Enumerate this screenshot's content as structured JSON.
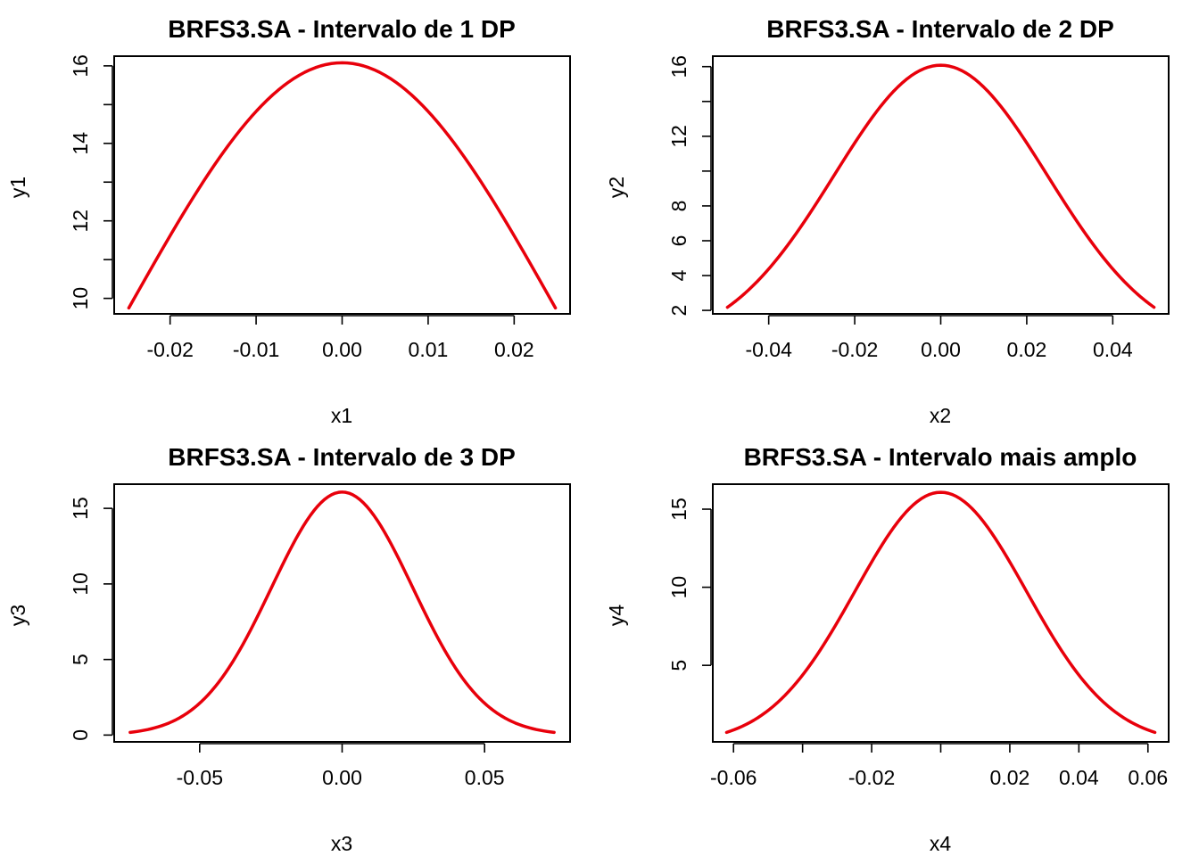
{
  "colors": {
    "curve": "#e8000b",
    "axis": "#000000",
    "background": "#ffffff"
  },
  "chart_data": [
    {
      "type": "line",
      "title": "BRFS3.SA - Intervalo de 1 DP",
      "xlabel": "x1",
      "ylabel": "y1",
      "xlim": [
        -0.0265,
        0.0265
      ],
      "ylim": [
        9.6,
        16.25
      ],
      "xticks": [
        -0.02,
        -0.01,
        0.0,
        0.01,
        0.02
      ],
      "xtick_labels": [
        "-0.02",
        "-0.01",
        "0.00",
        "0.01",
        "0.02"
      ],
      "yticks": [
        10,
        11,
        12,
        13,
        14,
        15,
        16
      ],
      "ytick_labels": [
        "10",
        "",
        "12",
        "",
        "14",
        "",
        "16"
      ],
      "series": [
        {
          "mean": 0.0,
          "sd": 0.0248,
          "peak": 16.08,
          "x_range": [
            -0.0248,
            0.0248
          ],
          "points": 80
        }
      ]
    },
    {
      "type": "line",
      "title": "BRFS3.SA - Intervalo de 2 DP",
      "xlabel": "x2",
      "ylabel": "y2",
      "xlim": [
        -0.053,
        0.053
      ],
      "ylim": [
        1.8,
        16.6
      ],
      "xticks": [
        -0.04,
        -0.02,
        0.0,
        0.02,
        0.04
      ],
      "xtick_labels": [
        "-0.04",
        "-0.02",
        "0.00",
        "0.02",
        "0.04"
      ],
      "yticks": [
        2,
        4,
        6,
        8,
        10,
        12,
        14,
        16
      ],
      "ytick_labels": [
        "2",
        "4",
        "6",
        "8",
        "",
        "12",
        "",
        "16"
      ],
      "series": [
        {
          "mean": 0.0,
          "sd": 0.0248,
          "peak": 16.08,
          "x_range": [
            -0.0496,
            0.0496
          ],
          "points": 100
        }
      ]
    },
    {
      "type": "line",
      "title": "BRFS3.SA - Intervalo de 3 DP",
      "xlabel": "x3",
      "ylabel": "y3",
      "xlim": [
        -0.08,
        0.08
      ],
      "ylim": [
        -0.45,
        16.6
      ],
      "xticks": [
        -0.05,
        0.0,
        0.05
      ],
      "xtick_labels": [
        "-0.05",
        "0.00",
        "0.05"
      ],
      "yticks": [
        0,
        5,
        10,
        15
      ],
      "ytick_labels": [
        "0",
        "5",
        "10",
        "15"
      ],
      "series": [
        {
          "mean": 0.0,
          "sd": 0.0248,
          "peak": 16.08,
          "x_range": [
            -0.0744,
            0.0744
          ],
          "points": 120
        }
      ]
    },
    {
      "type": "line",
      "title": "BRFS3.SA - Intervalo mais amplo",
      "xlabel": "x4",
      "ylabel": "y4",
      "xlim": [
        -0.066,
        0.066
      ],
      "ylim": [
        0.1,
        16.6
      ],
      "xticks": [
        -0.06,
        -0.04,
        -0.02,
        0.0,
        0.02,
        0.04,
        0.06
      ],
      "xtick_labels": [
        "-0.06",
        "",
        "-0.02",
        "",
        "0.02",
        "0.04",
        "0.06"
      ],
      "yticks": [
        5,
        10,
        15
      ],
      "ytick_labels": [
        "5",
        "10",
        "15"
      ],
      "series": [
        {
          "mean": 0.0,
          "sd": 0.0248,
          "peak": 16.08,
          "x_range": [
            -0.062,
            0.062
          ],
          "points": 110
        }
      ]
    }
  ]
}
